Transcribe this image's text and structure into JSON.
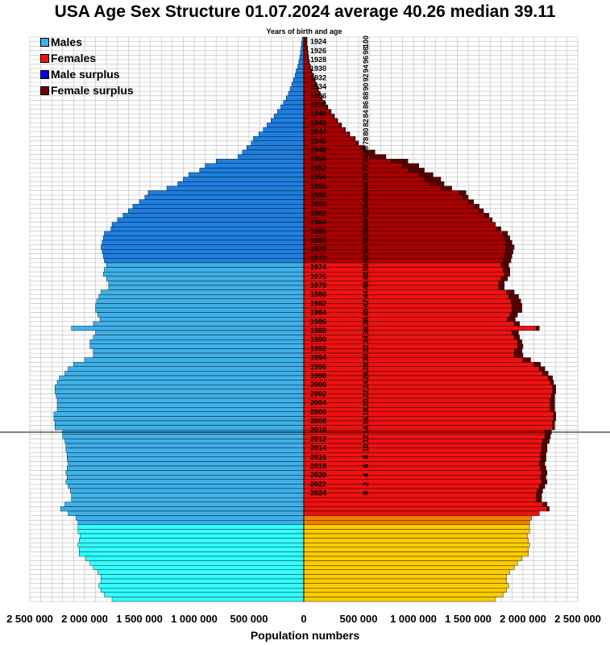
{
  "title": "USA Age Sex Structure 01.07.2024 average 40.26 median 39.11",
  "top_label": "Years of birth and age",
  "colors": {
    "males_young": "#33ffff",
    "males_mid": "#3fb0e8",
    "males_old": "#1e7fe0",
    "male_surplus": "#0000e0",
    "females_young": "#ffcc00",
    "females_mid": "#f08000",
    "females_main": "#ee1111",
    "females_old": "#aa0000",
    "female_surplus": "#5a0000",
    "grid": "#bbbbbb"
  },
  "legend": [
    {
      "label": "Males",
      "color": "#3fb0e8"
    },
    {
      "label": "Females",
      "color": "#ee1111"
    },
    {
      "label": "Male surplus",
      "color": "#0000e0"
    },
    {
      "label": "Female surplus",
      "color": "#6b0000"
    }
  ],
  "chart_data": {
    "type": "bar",
    "orientation": "horizontal population pyramid",
    "title": "USA Age Sex Structure 01.07.2024 average 40.26 median 39.11",
    "xlabel": "Population numbers",
    "x_ticks": [
      "2 500 000",
      "2 000 000",
      "1 500 000",
      "1 000 000",
      "500 000",
      "0",
      "500 000",
      "1 000 000",
      "1 500 000",
      "2 000 000",
      "2 500 000"
    ],
    "xlim": [
      -2500000,
      2500000
    ],
    "year_labels": [
      "1924",
      "1926",
      "1928",
      "1930",
      "1932",
      "1934",
      "1936",
      "1938",
      "1940",
      "1942",
      "1944",
      "1946",
      "1948",
      "1950",
      "1952",
      "1954",
      "1956",
      "1958",
      "1960",
      "1962",
      "1964",
      "1966",
      "1968",
      "1970",
      "1972",
      "1974",
      "1976",
      "1978",
      "1980",
      "1982",
      "1984",
      "1986",
      "1988",
      "1990",
      "1992",
      "1994",
      "1996",
      "1998",
      "2000",
      "2002",
      "2004",
      "2006",
      "2008",
      "2010",
      "2012",
      "2014",
      "2016",
      "2018",
      "2020",
      "2022",
      "2024"
    ],
    "age_labels": [
      "100",
      "98",
      "96",
      "94",
      "92",
      "90",
      "88",
      "86",
      "84",
      "82",
      "80",
      "78",
      "76",
      "74",
      "72",
      "70",
      "68",
      "66",
      "64",
      "62",
      "60",
      "58",
      "56",
      "54",
      "52",
      "50",
      "48",
      "46",
      "44",
      "42",
      "40",
      "38",
      "36",
      "34",
      "32",
      "30",
      "28",
      "26",
      "24",
      "22",
      "20",
      "18",
      "16",
      "14",
      "12",
      "10",
      "8",
      "6",
      "4",
      "2",
      "0"
    ],
    "series": [
      {
        "name": "Males",
        "values": [
          15000,
          20000,
          25000,
          30000,
          37000,
          45000,
          55000,
          70000,
          80000,
          95000,
          110000,
          125000,
          140000,
          160000,
          185000,
          210000,
          240000,
          270000,
          300000,
          335000,
          370000,
          410000,
          460000,
          480000,
          520000,
          560000,
          600000,
          800000,
          900000,
          950000,
          1050000,
          1100000,
          1150000,
          1250000,
          1420000,
          1450000,
          1500000,
          1560000,
          1600000,
          1650000,
          1700000,
          1750000,
          1760000,
          1820000,
          1830000,
          1840000,
          1850000,
          1840000,
          1830000,
          1820000,
          1800000,
          1820000,
          1830000,
          1800000,
          1780000,
          1780000,
          1850000,
          1870000,
          1890000,
          1900000,
          1900000,
          1880000,
          1860000,
          1920000,
          2120000,
          1900000,
          1920000,
          1950000,
          1950000,
          1920000,
          1920000,
          2000000,
          2100000,
          2150000,
          2180000,
          2230000,
          2250000,
          2270000,
          2270000,
          2260000,
          2250000,
          2250000,
          2250000,
          2280000,
          2280000,
          2270000,
          2270000,
          2200000,
          2200000,
          2180000,
          2170000,
          2170000,
          2160000,
          2160000,
          2150000,
          2160000,
          2170000,
          2160000,
          2170000,
          2150000,
          2130000,
          2120000,
          2120000,
          2180000,
          2220000,
          2150000,
          2080000,
          2060000,
          2060000,
          2060000,
          2040000,
          2050000,
          2060000,
          2050000,
          2050000,
          1990000,
          1950000,
          1920000,
          1880000,
          1850000,
          1850000,
          1870000,
          1850000,
          1820000,
          1750000
        ]
      },
      {
        "name": "Females",
        "values": [
          30000,
          30000,
          35000,
          40000,
          45000,
          52000,
          62000,
          75000,
          90000,
          105000,
          120000,
          135000,
          150000,
          170000,
          195000,
          220000,
          250000,
          280000,
          310000,
          345000,
          380000,
          420000,
          470000,
          500000,
          560000,
          650000,
          750000,
          950000,
          1050000,
          1100000,
          1180000,
          1250000,
          1280000,
          1350000,
          1480000,
          1500000,
          1550000,
          1600000,
          1640000,
          1690000,
          1720000,
          1750000,
          1800000,
          1860000,
          1880000,
          1900000,
          1920000,
          1910000,
          1900000,
          1890000,
          1870000,
          1880000,
          1880000,
          1860000,
          1830000,
          1830000,
          1920000,
          1960000,
          1980000,
          1990000,
          1990000,
          1950000,
          1930000,
          1970000,
          2150000,
          1960000,
          1970000,
          1990000,
          2000000,
          1990000,
          2000000,
          2070000,
          2160000,
          2200000,
          2230000,
          2270000,
          2280000,
          2300000,
          2300000,
          2290000,
          2290000,
          2290000,
          2290000,
          2300000,
          2300000,
          2290000,
          2290000,
          2260000,
          2250000,
          2240000,
          2220000,
          2220000,
          2210000,
          2210000,
          2200000,
          2210000,
          2220000,
          2210000,
          2220000,
          2200000,
          2180000,
          2170000,
          2170000,
          2220000,
          2240000,
          2150000,
          2080000,
          2060000,
          2060000,
          2060000,
          2040000,
          2050000,
          2060000,
          2050000,
          2050000,
          1990000,
          1950000,
          1920000,
          1880000,
          1850000,
          1850000,
          1870000,
          1850000,
          1820000,
          1750000
        ]
      }
    ],
    "marker_line_age": 37
  }
}
